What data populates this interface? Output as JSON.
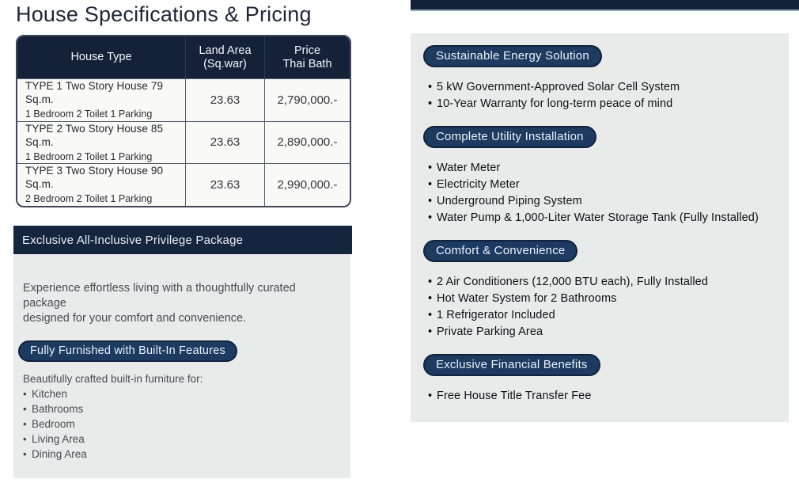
{
  "colors": {
    "navy": "#142139",
    "pill_blue": "#1D3B61",
    "panel_gray": "#E9EBEA",
    "header_bar": "#16253E"
  },
  "page": {
    "title": "House Specifications & Pricing"
  },
  "pricing_table": {
    "columns": {
      "house_type": "House Type",
      "land_area_line1": "Land  Area",
      "land_area_line2": "(Sq.war)",
      "price_line1": "Price",
      "price_line2": "Thai Bath"
    },
    "rows": [
      {
        "name": "TYPE 1 Two Story House 79 Sq.m.",
        "detail": "1 Bedroom 2 Toilet 1 Parking",
        "land_area": "23.63",
        "price": "2,790,000.-"
      },
      {
        "name": "TYPE 2 Two Story House 85 Sq.m.",
        "detail": "1 Bedroom 2 Toilet 1 Parking",
        "land_area": "23.63",
        "price": "2,890,000.-"
      },
      {
        "name": "TYPE 3 Two Story House 90 Sq.m.",
        "detail": "2 Bedroom 2 Toilet 1 Parking",
        "land_area": "23.63",
        "price": "2,990,000.-"
      }
    ]
  },
  "package": {
    "header": "Exclusive All-Inclusive Privilege Package",
    "intro_line1": "Experience effortless living with a thoughtfully curated package",
    "intro_line2": "designed for your comfort and convenience.",
    "pill": "Fully Furnished with Built-In Features",
    "list_intro": "Beautifully crafted built-in furniture for:",
    "items": [
      "Kitchen",
      "Bathrooms",
      "Bedroom",
      "Living Area",
      "Dining Area"
    ]
  },
  "features": {
    "sections": [
      {
        "pill": "Sustainable Energy Solution",
        "items": [
          "5 kW Government-Approved Solar Cell System",
          "10-Year Warranty for long-term peace of mind"
        ]
      },
      {
        "pill": "Complete Utility Installation",
        "items": [
          "Water Meter",
          "Electricity Meter",
          "Underground Piping System",
          "Water Pump & 1,000-Liter Water Storage Tank (Fully Installed)"
        ]
      },
      {
        "pill": "Comfort & Convenience",
        "items": [
          "2 Air Conditioners (12,000 BTU each), Fully Installed",
          "Hot Water System for 2 Bathrooms",
          "1 Refrigerator Included",
          "Private Parking Area"
        ]
      },
      {
        "pill": "Exclusive Financial Benefits",
        "items": [
          "Free House Title Transfer Fee"
        ]
      }
    ]
  }
}
